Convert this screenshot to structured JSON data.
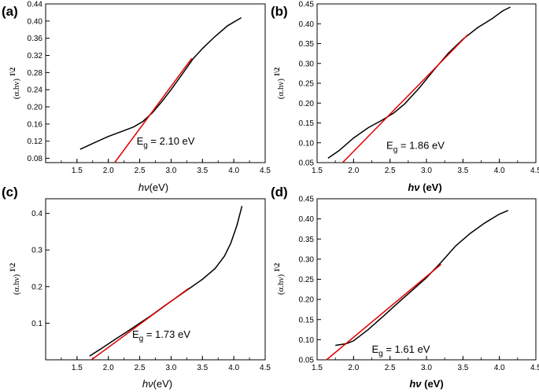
{
  "colors": {
    "data": "#000000",
    "fit": "#e00000"
  },
  "chart_data": [
    {
      "type": "line",
      "panel_label": "(a)",
      "xlabel_italic": "hν",
      "xlabel_unit": "(eV)",
      "xlabel_bold": false,
      "ylabel": "(α.hν) ^{1\\2}",
      "xlim": [
        1.0,
        4.5
      ],
      "ylim": [
        0.07,
        0.44
      ],
      "xticks": [
        "1.5",
        "2.0",
        "2.5",
        "3.0",
        "3.5",
        "4.0",
        "4.5"
      ],
      "yticks": [
        "0.08",
        "0.12",
        "0.16",
        "0.20",
        "0.24",
        "0.28",
        "0.32",
        "0.36",
        "0.40",
        "0.44"
      ],
      "annotation": {
        "prefix": "E",
        "sub": "g",
        "suffix": " = 2.10 eV",
        "x": 2.45,
        "y": 0.112
      },
      "series": [
        {
          "name": "data",
          "x": [
            1.55,
            1.8,
            2.0,
            2.2,
            2.4,
            2.55,
            2.7,
            2.85,
            3.0,
            3.2,
            3.35,
            3.5,
            3.7,
            3.9,
            4.12
          ],
          "y": [
            0.101,
            0.118,
            0.131,
            0.142,
            0.153,
            0.166,
            0.186,
            0.212,
            0.24,
            0.281,
            0.312,
            0.336,
            0.364,
            0.389,
            0.408
          ]
        },
        {
          "name": "linear fit",
          "x": [
            2.1,
            3.33
          ],
          "y": [
            0.07,
            0.313
          ]
        }
      ]
    },
    {
      "type": "line",
      "panel_label": "(b)",
      "xlabel_italic": "hν",
      "xlabel_unit": " (eV)",
      "xlabel_bold": true,
      "ylabel": "(α.hν) ^{1\\2}",
      "xlim": [
        1.5,
        4.5
      ],
      "ylim": [
        0.05,
        0.45
      ],
      "xticks": [
        "1.5",
        "2.0",
        "2.5",
        "3.0",
        "3.5",
        "4.0",
        "4.5"
      ],
      "yticks": [
        "0.05",
        "0.10",
        "0.15",
        "0.20",
        "0.25",
        "0.30",
        "0.35",
        "0.40",
        "0.45"
      ],
      "annotation": {
        "prefix": "E",
        "sub": "g",
        "suffix": " = 1.86 eV",
        "x": 2.45,
        "y": 0.085
      },
      "series": [
        {
          "name": "data",
          "x": [
            1.65,
            1.8,
            2.0,
            2.2,
            2.4,
            2.55,
            2.7,
            2.9,
            3.1,
            3.3,
            3.5,
            3.7,
            3.9,
            4.05,
            4.15
          ],
          "y": [
            0.061,
            0.08,
            0.112,
            0.138,
            0.158,
            0.175,
            0.198,
            0.238,
            0.283,
            0.326,
            0.361,
            0.39,
            0.413,
            0.433,
            0.442
          ]
        },
        {
          "name": "linear fit",
          "x": [
            1.85,
            3.57
          ],
          "y": [
            0.05,
            0.373
          ]
        }
      ]
    },
    {
      "type": "line",
      "panel_label": "(c)",
      "xlabel_italic": "hν",
      "xlabel_unit": "(eV)",
      "xlabel_bold": false,
      "ylabel": "(α.hν) ^{1\\2}",
      "xlim": [
        1.0,
        4.5
      ],
      "ylim": [
        0.0,
        0.44
      ],
      "xticks": [
        "1.5",
        "2.0",
        "2.5",
        "3.0",
        "3.5",
        "4.0",
        "4.5"
      ],
      "yticks": [
        "0.1",
        "0.2",
        "0.3",
        "0.4"
      ],
      "annotation": {
        "prefix": "E",
        "sub": "g",
        "suffix": " = 1.73 eV",
        "x": 2.38,
        "y": 0.06
      },
      "series": [
        {
          "name": "data",
          "x": [
            1.7,
            1.9,
            2.1,
            2.3,
            2.5,
            2.7,
            2.9,
            3.1,
            3.3,
            3.5,
            3.7,
            3.85,
            3.95,
            4.05,
            4.13
          ],
          "y": [
            0.01,
            0.032,
            0.055,
            0.077,
            0.1,
            0.123,
            0.148,
            0.172,
            0.196,
            0.22,
            0.249,
            0.283,
            0.318,
            0.367,
            0.42
          ]
        },
        {
          "name": "linear fit",
          "x": [
            1.73,
            3.28
          ],
          "y": [
            0.0,
            0.195
          ]
        }
      ]
    },
    {
      "type": "line",
      "panel_label": "(d)",
      "xlabel_italic": "hν",
      "xlabel_unit": " (eV)",
      "xlabel_bold": true,
      "ylabel": "(α.hν) ^{1\\2}",
      "xlim": [
        1.5,
        4.5
      ],
      "ylim": [
        0.05,
        0.45
      ],
      "xticks": [
        "1.5",
        "2.0",
        "2.5",
        "3.0",
        "3.5",
        "4.0",
        "4.5"
      ],
      "yticks": [
        "0.05",
        "0.10",
        "0.15",
        "0.20",
        "0.25",
        "0.30",
        "0.35",
        "0.40",
        "0.45"
      ],
      "annotation": {
        "prefix": "E",
        "sub": "g",
        "suffix": " = 1.61 eV",
        "x": 2.25,
        "y": 0.068
      },
      "series": [
        {
          "name": "data",
          "x": [
            1.75,
            1.9,
            2.0,
            2.2,
            2.4,
            2.6,
            2.8,
            3.0,
            3.2,
            3.4,
            3.6,
            3.8,
            4.0,
            4.12
          ],
          "y": [
            0.086,
            0.09,
            0.097,
            0.125,
            0.157,
            0.19,
            0.222,
            0.254,
            0.292,
            0.333,
            0.364,
            0.39,
            0.412,
            0.421
          ]
        },
        {
          "name": "linear fit",
          "x": [
            1.63,
            3.2
          ],
          "y": [
            0.05,
            0.287
          ]
        }
      ]
    }
  ]
}
